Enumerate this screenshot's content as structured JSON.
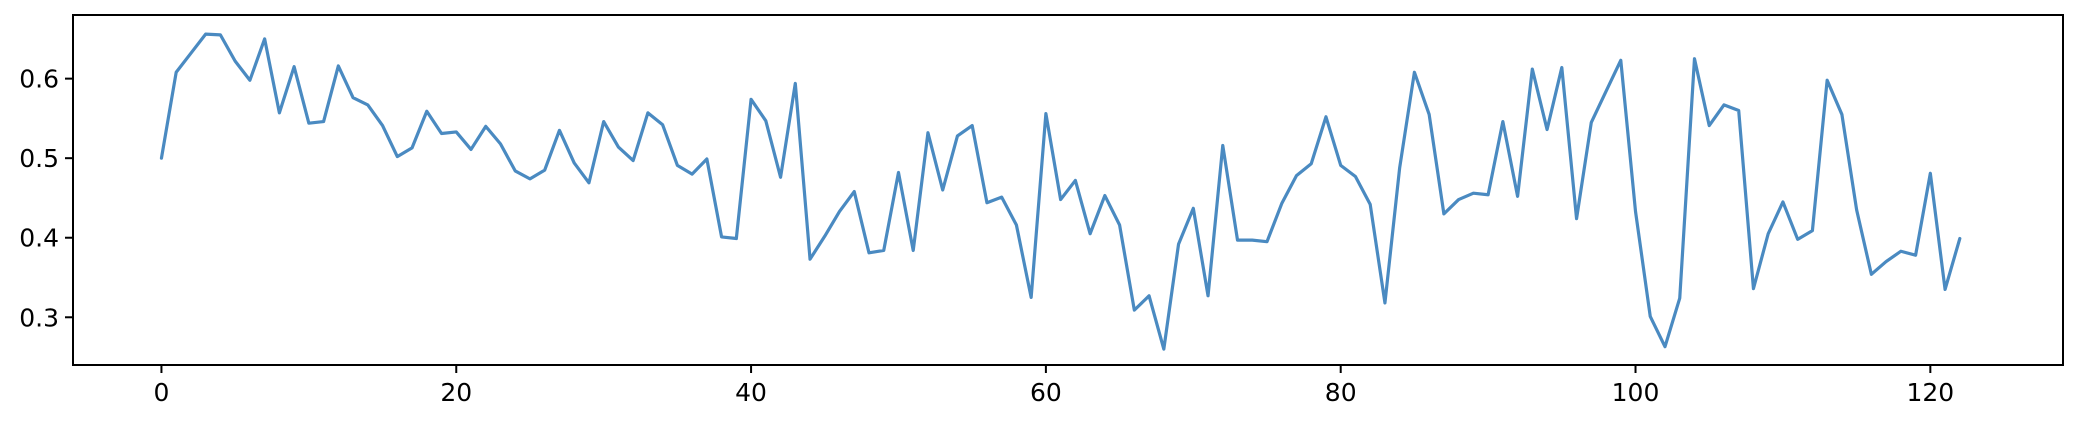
{
  "chart_data": {
    "type": "line",
    "title": "",
    "xlabel": "",
    "ylabel": "",
    "xlim": [
      -6,
      129
    ],
    "ylim": [
      0.24,
      0.68
    ],
    "xticks": [
      0,
      20,
      40,
      60,
      80,
      100,
      120
    ],
    "xtick_labels": [
      "0",
      "20",
      "40",
      "60",
      "80",
      "100",
      "120"
    ],
    "yticks": [
      0.3,
      0.4,
      0.5,
      0.6
    ],
    "ytick_labels": [
      "0.3",
      "0.4",
      "0.5",
      "0.6"
    ],
    "grid": false,
    "legend": "none",
    "series": [
      {
        "color": "#4a8ac1",
        "x": [
          0,
          1,
          2,
          3,
          4,
          5,
          6,
          7,
          8,
          9,
          10,
          11,
          12,
          13,
          14,
          15,
          16,
          17,
          18,
          19,
          20,
          21,
          22,
          23,
          24,
          25,
          26,
          27,
          28,
          29,
          30,
          31,
          32,
          33,
          34,
          35,
          36,
          37,
          38,
          39,
          40,
          41,
          42,
          43,
          44,
          45,
          46,
          47,
          48,
          49,
          50,
          51,
          52,
          53,
          54,
          55,
          56,
          57,
          58,
          59,
          60,
          61,
          62,
          63,
          64,
          65,
          66,
          67,
          68,
          69,
          70,
          71,
          72,
          73,
          74,
          75,
          76,
          77,
          78,
          79,
          80,
          81,
          82,
          83,
          84,
          85,
          86,
          87,
          88,
          89,
          90,
          91,
          92,
          93,
          94,
          95,
          96,
          97,
          98,
          99,
          100,
          101,
          102,
          103,
          104,
          105,
          106,
          107,
          108,
          109,
          110,
          111,
          112,
          113,
          114,
          115,
          116,
          117,
          118,
          119,
          120,
          121,
          122
        ],
        "y": [
          0.5,
          0.608,
          0.632,
          0.656,
          0.655,
          0.622,
          0.598,
          0.65,
          0.557,
          0.615,
          0.544,
          0.546,
          0.616,
          0.576,
          0.567,
          0.541,
          0.502,
          0.513,
          0.559,
          0.531,
          0.533,
          0.511,
          0.54,
          0.518,
          0.484,
          0.474,
          0.485,
          0.535,
          0.494,
          0.469,
          0.546,
          0.514,
          0.497,
          0.557,
          0.542,
          0.491,
          0.48,
          0.499,
          0.401,
          0.399,
          0.574,
          0.547,
          0.476,
          0.594,
          0.373,
          0.402,
          0.433,
          0.458,
          0.381,
          0.384,
          0.482,
          0.384,
          0.532,
          0.46,
          0.528,
          0.541,
          0.444,
          0.451,
          0.416,
          0.325,
          0.556,
          0.448,
          0.472,
          0.405,
          0.453,
          0.416,
          0.309,
          0.327,
          0.26,
          0.392,
          0.437,
          0.327,
          0.516,
          0.397,
          0.397,
          0.395,
          0.443,
          0.478,
          0.493,
          0.552,
          0.491,
          0.477,
          0.442,
          0.318,
          0.488,
          0.608,
          0.555,
          0.43,
          0.448,
          0.456,
          0.454,
          0.546,
          0.452,
          0.612,
          0.536,
          0.614,
          0.424,
          0.545,
          0.584,
          0.623,
          0.433,
          0.301,
          0.263,
          0.324,
          0.625,
          0.541,
          0.567,
          0.56,
          0.336,
          0.405,
          0.445,
          0.398,
          0.409,
          0.598,
          0.555,
          0.435,
          0.354,
          0.37,
          0.383,
          0.378,
          0.481,
          0.335,
          0.399
        ]
      }
    ]
  }
}
